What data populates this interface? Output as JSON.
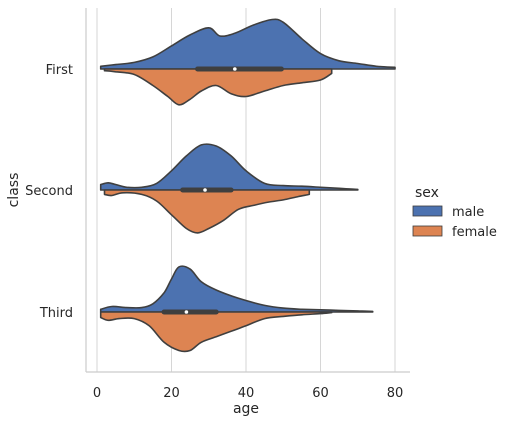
{
  "chart_data": {
    "type": "violin",
    "split": true,
    "xlabel": "age",
    "ylabel": "class",
    "xlim": [
      -3,
      85
    ],
    "x_ticks": [
      0,
      20,
      40,
      60,
      80
    ],
    "x_tick_labels": [
      "0",
      "20",
      "40",
      "60",
      "80"
    ],
    "grid": "vertical",
    "categories": [
      "First",
      "Second",
      "Third"
    ],
    "legend": {
      "title": "sex",
      "placement": "right",
      "entries": [
        {
          "label": "male",
          "color": "#4c72b0"
        },
        {
          "label": "female",
          "color": "#dd8452"
        }
      ]
    },
    "series": [
      {
        "name": "male",
        "color": "#4c72b0",
        "side": "upper",
        "density": [
          {
            "category": "First",
            "min": 1,
            "max": 80,
            "points": [
              [
                1,
                0.05
              ],
              [
                5,
                0.08
              ],
              [
                10,
                0.12
              ],
              [
                15,
                0.22
              ],
              [
                20,
                0.42
              ],
              [
                25,
                0.62
              ],
              [
                30,
                0.75
              ],
              [
                33,
                0.6
              ],
              [
                37,
                0.65
              ],
              [
                42,
                0.8
              ],
              [
                47,
                0.9
              ],
              [
                50,
                0.85
              ],
              [
                55,
                0.55
              ],
              [
                60,
                0.28
              ],
              [
                65,
                0.15
              ],
              [
                70,
                0.1
              ],
              [
                75,
                0.05
              ],
              [
                80,
                0.03
              ]
            ]
          },
          {
            "category": "Second",
            "min": 1,
            "max": 70,
            "points": [
              [
                1,
                0.1
              ],
              [
                3,
                0.13
              ],
              [
                5,
                0.1
              ],
              [
                8,
                0.05
              ],
              [
                12,
                0.05
              ],
              [
                16,
                0.12
              ],
              [
                20,
                0.35
              ],
              [
                24,
                0.62
              ],
              [
                28,
                0.82
              ],
              [
                32,
                0.8
              ],
              [
                36,
                0.62
              ],
              [
                40,
                0.35
              ],
              [
                45,
                0.12
              ],
              [
                50,
                0.08
              ],
              [
                55,
                0.07
              ],
              [
                60,
                0.05
              ],
              [
                65,
                0.03
              ],
              [
                70,
                0.01
              ]
            ]
          },
          {
            "category": "Third",
            "min": 1,
            "max": 74,
            "points": [
              [
                1,
                0.05
              ],
              [
                4,
                0.1
              ],
              [
                8,
                0.08
              ],
              [
                12,
                0.08
              ],
              [
                15,
                0.15
              ],
              [
                18,
                0.35
              ],
              [
                20,
                0.6
              ],
              [
                22,
                0.82
              ],
              [
                25,
                0.78
              ],
              [
                28,
                0.55
              ],
              [
                32,
                0.4
              ],
              [
                38,
                0.25
              ],
              [
                45,
                0.12
              ],
              [
                50,
                0.07
              ],
              [
                55,
                0.05
              ],
              [
                60,
                0.04
              ],
              [
                65,
                0.03
              ],
              [
                70,
                0.02
              ],
              [
                74,
                0.01
              ]
            ]
          }
        ],
        "box": [
          {
            "category": "First",
            "q1": 27,
            "median": 37,
            "q3": 49.5
          },
          {
            "category": "Second",
            "q1": 23,
            "median": 29,
            "q3": 36
          },
          {
            "category": "Third",
            "q1": 18,
            "median": 24,
            "q3": 32
          }
        ]
      },
      {
        "name": "female",
        "color": "#dd8452",
        "side": "lower",
        "density": [
          {
            "category": "First",
            "min": 2,
            "max": 63,
            "points": [
              [
                2,
                0.03
              ],
              [
                5,
                0.05
              ],
              [
                10,
                0.1
              ],
              [
                15,
                0.3
              ],
              [
                19,
                0.5
              ],
              [
                22,
                0.65
              ],
              [
                25,
                0.55
              ],
              [
                28,
                0.4
              ],
              [
                32,
                0.3
              ],
              [
                36,
                0.45
              ],
              [
                40,
                0.5
              ],
              [
                45,
                0.4
              ],
              [
                50,
                0.3
              ],
              [
                55,
                0.25
              ],
              [
                60,
                0.2
              ],
              [
                63,
                0.08
              ]
            ]
          },
          {
            "category": "Second",
            "min": 2,
            "max": 57,
            "points": [
              [
                2,
                0.08
              ],
              [
                4,
                0.1
              ],
              [
                7,
                0.05
              ],
              [
                12,
                0.08
              ],
              [
                16,
                0.2
              ],
              [
                20,
                0.45
              ],
              [
                24,
                0.7
              ],
              [
                27,
                0.78
              ],
              [
                30,
                0.7
              ],
              [
                34,
                0.55
              ],
              [
                38,
                0.35
              ],
              [
                42,
                0.28
              ],
              [
                46,
                0.22
              ],
              [
                50,
                0.18
              ],
              [
                54,
                0.12
              ],
              [
                57,
                0.08
              ]
            ]
          },
          {
            "category": "Third",
            "min": 1,
            "max": 63,
            "points": [
              [
                1,
                0.1
              ],
              [
                3,
                0.15
              ],
              [
                6,
                0.12
              ],
              [
                10,
                0.12
              ],
              [
                14,
                0.25
              ],
              [
                18,
                0.55
              ],
              [
                22,
                0.7
              ],
              [
                25,
                0.7
              ],
              [
                28,
                0.55
              ],
              [
                32,
                0.45
              ],
              [
                36,
                0.35
              ],
              [
                40,
                0.25
              ],
              [
                45,
                0.12
              ],
              [
                50,
                0.08
              ],
              [
                55,
                0.05
              ],
              [
                60,
                0.03
              ],
              [
                63,
                0.01
              ]
            ]
          }
        ]
      }
    ]
  }
}
